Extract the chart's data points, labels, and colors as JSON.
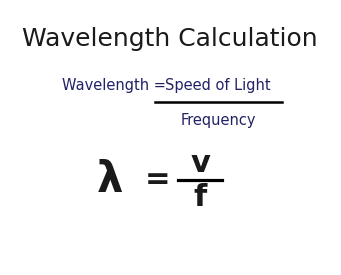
{
  "title": "Wavelength Calculation",
  "title_fontsize": 18,
  "text_color": "#1a1a1a",
  "bg_color": "#ffffff",
  "formula_left": "Wavelength = ",
  "formula_numerator": "Speed of Light",
  "formula_denominator": "Frequency",
  "formula_fontsize": 10.5,
  "formula_color": "#222266",
  "lambda_char": "λ",
  "lambda_fontsize": 30,
  "equals_char": "=",
  "equals_fontsize": 22,
  "v_char": "v",
  "v_fontsize": 22,
  "f_char": "f",
  "f_fontsize": 22,
  "line_color": "#000000",
  "line_width": 1.8
}
